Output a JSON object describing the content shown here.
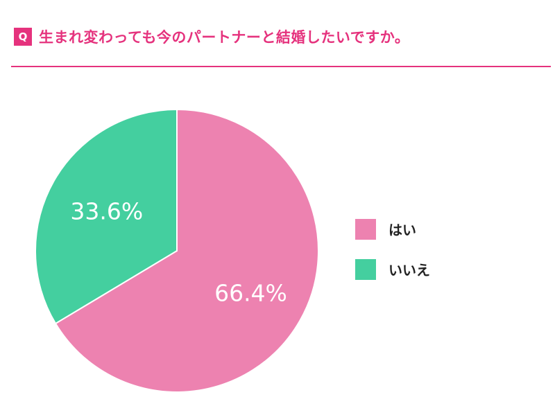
{
  "header": {
    "badge": "Q",
    "question": "生まれ変わっても今のパートナーと結婚したいですか。"
  },
  "colors": {
    "accent": "#e5327d",
    "yes": "#ed82b0",
    "no": "#44cf9f"
  },
  "chart_data": {
    "type": "pie",
    "start_angle": "12 o'clock, clockwise",
    "series": [
      {
        "name": "はい",
        "value": 66.4,
        "label": "66.4%",
        "color": "#ed82b0"
      },
      {
        "name": "いいえ",
        "value": 33.6,
        "label": "33.6%",
        "color": "#44cf9f"
      }
    ],
    "legend_position": "right"
  }
}
